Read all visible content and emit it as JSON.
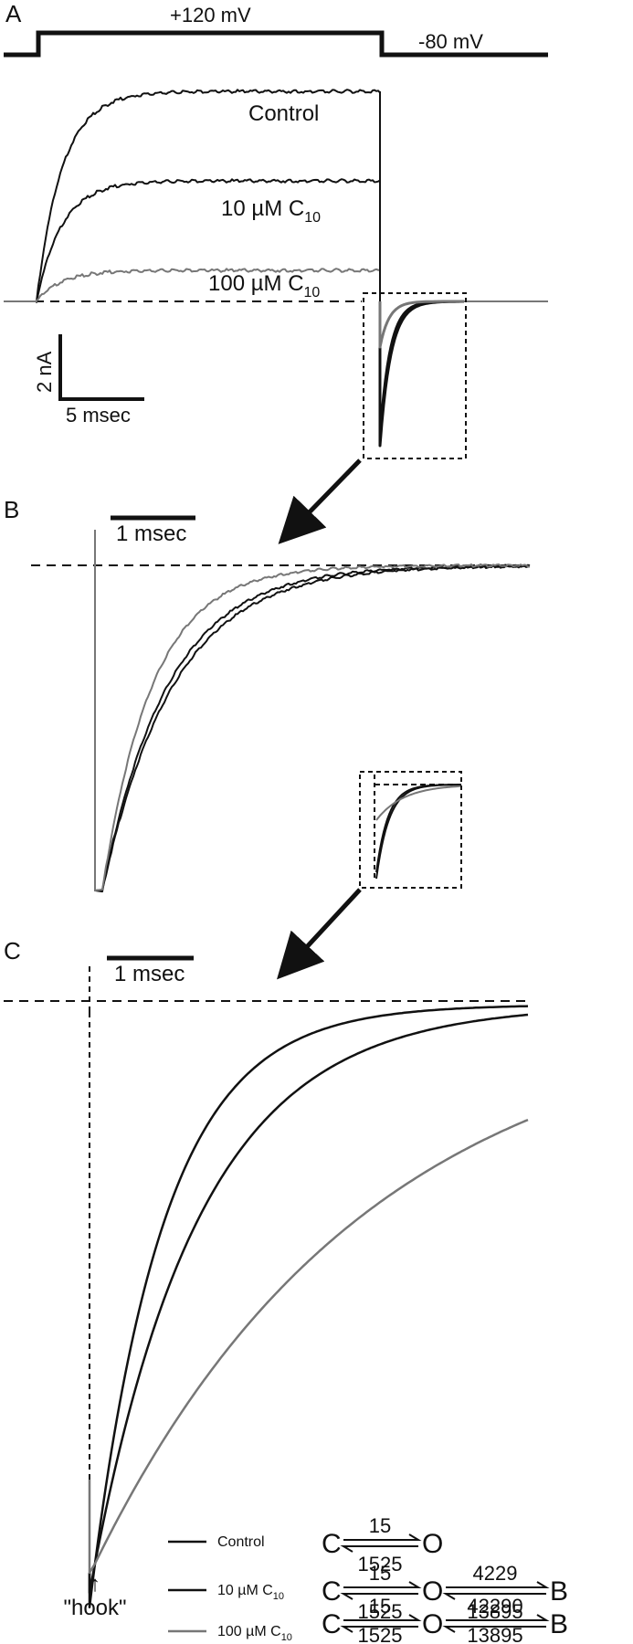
{
  "panel_a": {
    "letter": "A",
    "voltage_step_label": "+120 mV",
    "holding_label": "-80 mV",
    "trace_labels": {
      "control": "Control",
      "c10_10_prefix": "10 µM C",
      "c10_10_sub": "10",
      "c10_100_prefix": "100 µM C",
      "c10_100_sub": "10"
    },
    "scale_bar": {
      "y_label": "2 nA",
      "x_label": "5 msec"
    }
  },
  "panel_b": {
    "letter": "B",
    "scale_bar": {
      "x_label": "1 msec"
    }
  },
  "panel_c": {
    "letter": "C",
    "scale_bar": {
      "x_label": "1 msec"
    },
    "hook_label": "\"hook\"",
    "hook_arrow": "↑"
  },
  "legend": {
    "items": [
      {
        "label": "Control",
        "sub": "",
        "color": "#111111"
      },
      {
        "label": "10 µM C",
        "sub": "10",
        "color": "#111111"
      },
      {
        "label": "100 µM C",
        "sub": "10",
        "color": "#777777"
      }
    ]
  },
  "schemes": [
    {
      "state1": "C",
      "k_forward": "15",
      "k_back": "1525",
      "state2": "O",
      "k_block": "",
      "k_unblock": "",
      "state3": ""
    },
    {
      "state1": "C",
      "k_forward": "15",
      "k_back": "1525",
      "state2": "O",
      "k_block": "4229",
      "k_unblock": "13895",
      "state3": "B"
    },
    {
      "state1": "C",
      "k_forward": "15",
      "k_back": "1525",
      "state2": "O",
      "k_block": "42290",
      "k_unblock": "13895",
      "state3": "B"
    }
  ],
  "colors": {
    "control": "#111111",
    "c10_10": "#111111",
    "c10_100": "#777777",
    "axis": "#111111"
  }
}
